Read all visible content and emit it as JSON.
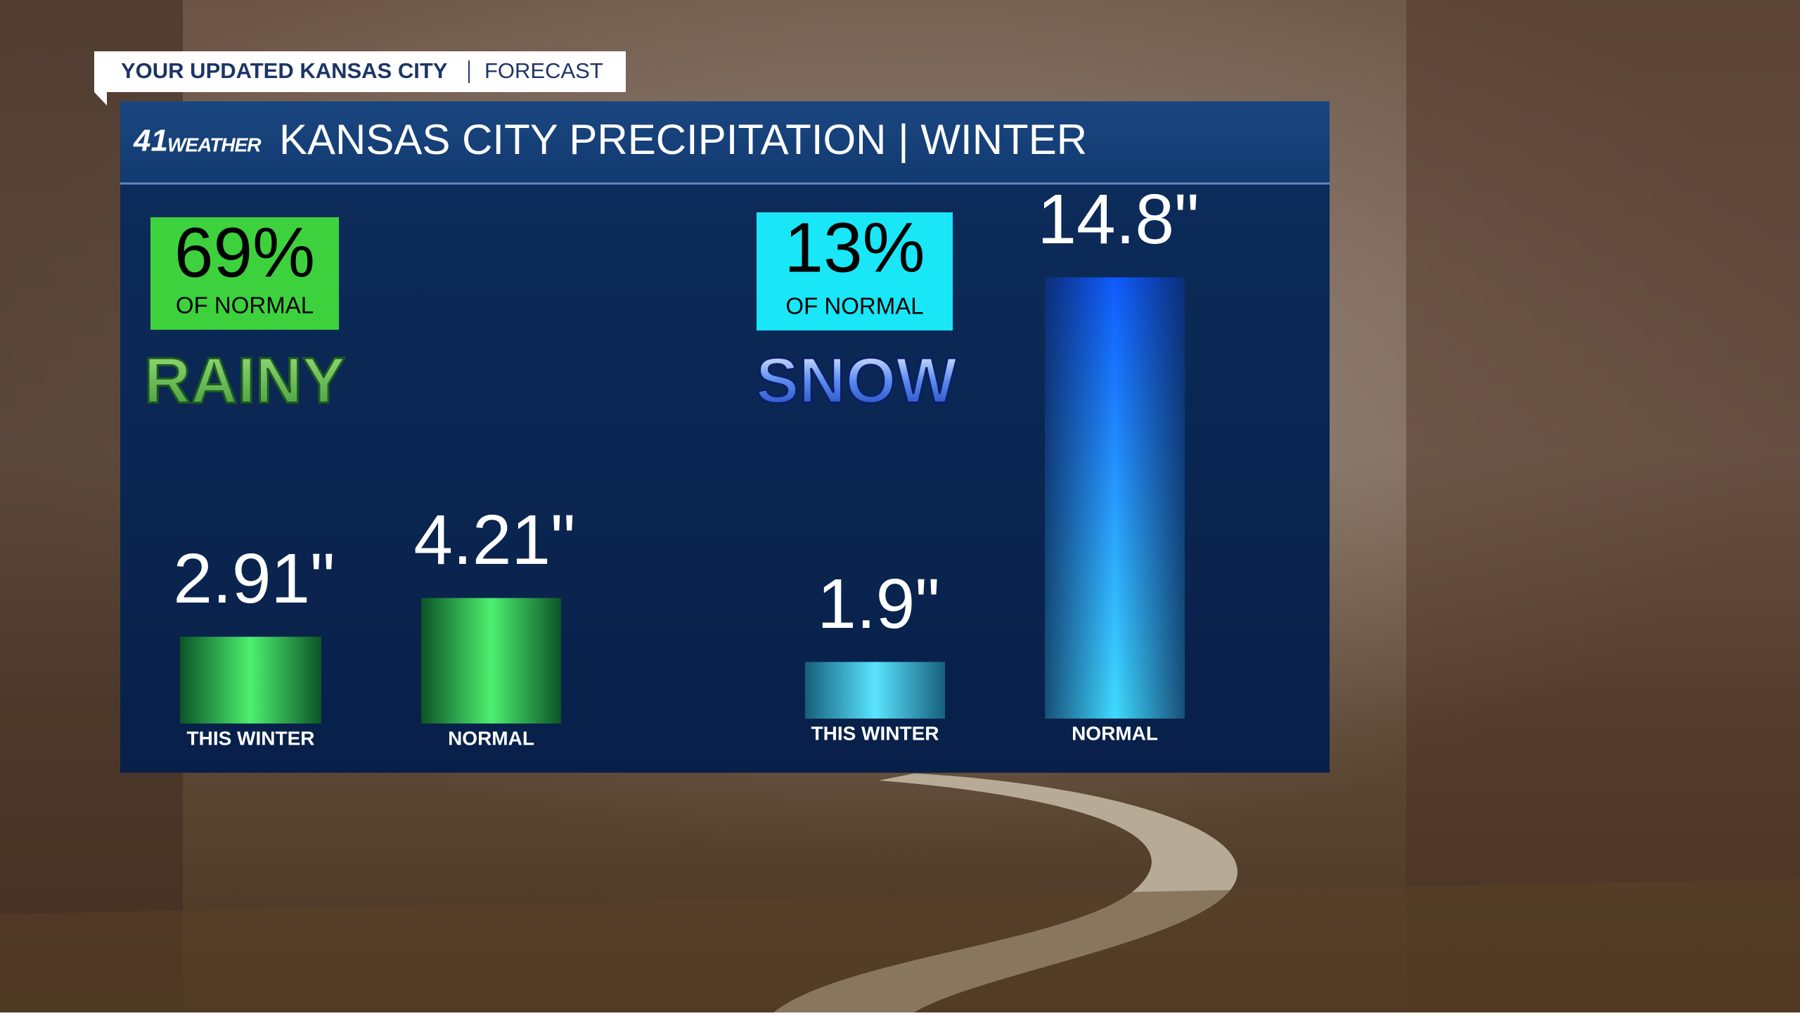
{
  "banner": {
    "show": "YOUR UPDATED KANSAS CITY",
    "segment": "FORECAST"
  },
  "logo": {
    "number": "41",
    "brand": "WEATHER"
  },
  "header": {
    "title": "KANSAS CITY PRECIPITATION | WINTER"
  },
  "chart_data": [
    {
      "type": "bar",
      "label": "RAINY",
      "badge_value": "69%",
      "badge_caption": "OF NORMAL",
      "categories": [
        "THIS WINTER",
        "NORMAL"
      ],
      "values": [
        2.91,
        4.21
      ],
      "value_labels": [
        "2.91\"",
        "4.21\""
      ]
    },
    {
      "type": "bar",
      "label": "SNOW",
      "badge_value": "13%",
      "badge_caption": "OF NORMAL",
      "categories": [
        "THIS WINTER",
        "NORMAL"
      ],
      "values": [
        1.9,
        14.8
      ],
      "value_labels": [
        "1.9\"",
        "14.8\""
      ]
    }
  ]
}
